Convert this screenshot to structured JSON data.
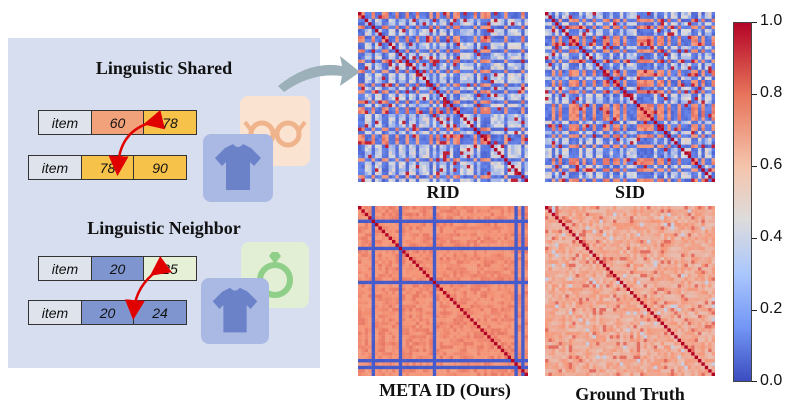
{
  "left_panel": {
    "shared": {
      "title": "Linguistic Shared",
      "row1": {
        "item": "item",
        "a": "60",
        "b": "78",
        "a_color": "#f2a27a",
        "b_color": "#f7c24a"
      },
      "row2": {
        "item": "item",
        "a": "78",
        "b": "90",
        "a_color": "#f7c24a",
        "b_color": "#f7c24a"
      }
    },
    "neighbor": {
      "title": "Linguistic Neighbor",
      "row1": {
        "item": "item",
        "a": "20",
        "b": "25",
        "a_color": "#7f95cf",
        "b_color": "#e6f0d6"
      },
      "row2": {
        "item": "item",
        "a": "20",
        "b": "24",
        "a_color": "#7f95cf",
        "b_color": "#7f95cf"
      }
    },
    "icons": [
      "glasses-icon",
      "tshirt-icon",
      "ring-icon",
      "tshirt-icon"
    ]
  },
  "heatmaps": [
    {
      "label": "RID"
    },
    {
      "label": "SID"
    },
    {
      "label": "META ID (Ours)"
    },
    {
      "label": "Ground Truth"
    }
  ],
  "colorbar": {
    "ticks": [
      "1.0",
      "0.8",
      "0.6",
      "0.4",
      "0.2",
      "0.0"
    ],
    "colormap": "coolwarm"
  }
}
